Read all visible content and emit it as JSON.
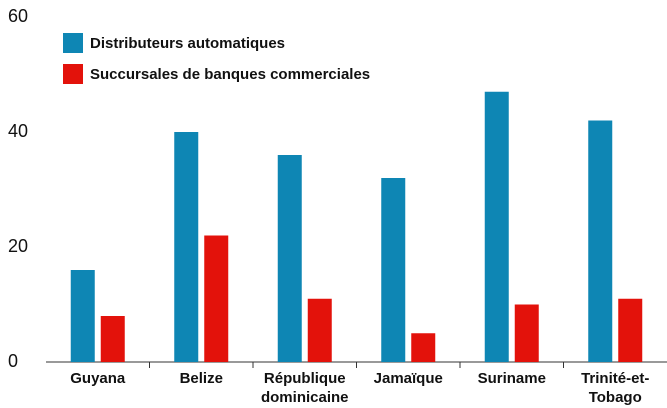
{
  "chart_data": {
    "type": "bar",
    "categories": [
      "Guyana",
      "Belize",
      "République dominicaine",
      "Jamaïque",
      "Suriname",
      "Trinité-et-Tobago"
    ],
    "series": [
      {
        "name": "Distributeurs automatiques",
        "color": "#0e86b4",
        "values": [
          16,
          40,
          36,
          32,
          47,
          42
        ]
      },
      {
        "name": "Succursales de banques commerciales",
        "color": "#e3120b",
        "values": [
          8,
          22,
          11,
          5,
          10,
          11
        ]
      }
    ],
    "ylim": [
      0,
      60
    ],
    "yticks": [
      0,
      20,
      40,
      60
    ],
    "grid": false,
    "legend": "upper-left"
  }
}
